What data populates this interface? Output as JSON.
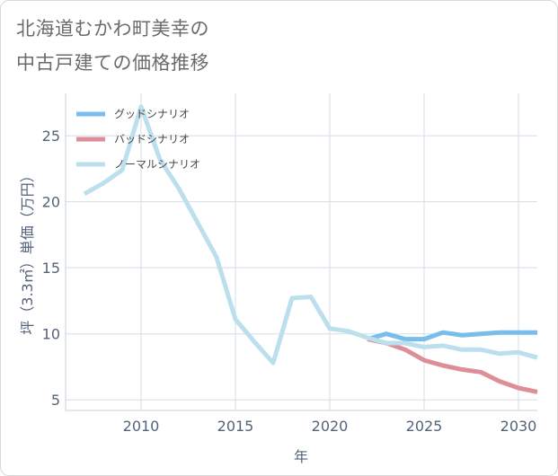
{
  "title_lines": [
    "北海道むかわ町美幸の",
    "中古戸建ての価格推移"
  ],
  "chart_data": {
    "type": "line",
    "xlabel": "年",
    "ylabel": "坪（3.3㎡）単価（万円）",
    "xlim": [
      2006,
      2031
    ],
    "ylim": [
      4.2,
      28.2
    ],
    "x_ticks": [
      2010,
      2015,
      2020,
      2025,
      2030
    ],
    "y_ticks": [
      5,
      10,
      15,
      20,
      25
    ],
    "grid": true,
    "legend_position": "top-left",
    "series": [
      {
        "name": "グッドシナリオ",
        "color": "#78bdec",
        "x": [
          2022,
          2023,
          2024,
          2025,
          2026,
          2027,
          2028,
          2029,
          2030,
          2031
        ],
        "y": [
          9.6,
          10.0,
          9.6,
          9.6,
          10.1,
          9.9,
          10.0,
          10.1,
          10.1,
          10.1
        ]
      },
      {
        "name": "バッドシナリオ",
        "color": "#dc8f98",
        "x": [
          2022,
          2023,
          2024,
          2025,
          2026,
          2027,
          2028,
          2029,
          2030,
          2031
        ],
        "y": [
          9.6,
          9.3,
          8.8,
          8.0,
          7.6,
          7.3,
          7.1,
          6.4,
          5.9,
          5.6
        ]
      },
      {
        "name": "ノーマルシナリオ",
        "color": "#bcdfee",
        "x": [
          2007,
          2008,
          2009,
          2010,
          2011,
          2012,
          2013,
          2014,
          2015,
          2016,
          2017,
          2018,
          2019,
          2020,
          2021,
          2022,
          2023,
          2024,
          2025,
          2026,
          2027,
          2028,
          2029,
          2030,
          2031
        ],
        "y": [
          20.6,
          21.4,
          22.4,
          27.2,
          23.2,
          21.0,
          18.4,
          15.8,
          11.1,
          9.4,
          7.8,
          12.7,
          12.8,
          10.4,
          10.2,
          9.7,
          9.3,
          9.3,
          9.0,
          9.1,
          8.8,
          8.8,
          8.5,
          8.6,
          8.2
        ]
      }
    ]
  }
}
